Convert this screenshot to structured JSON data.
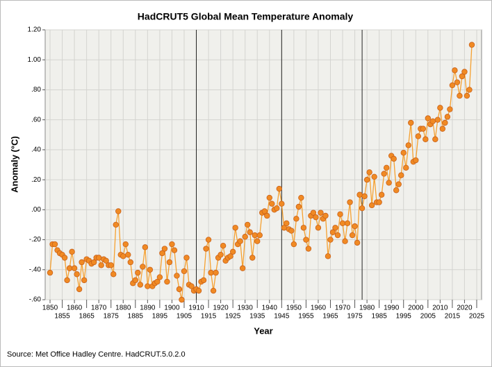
{
  "chart_data": {
    "type": "line",
    "title": "HadCRUT5 Global Mean Temperature Anomaly",
    "x_label": "Year",
    "y_label": "Anomaly (°C)",
    "source": "Source: Met Office Hadley Centre. HadCRUT.5.0.2.0",
    "xlim": [
      1848,
      2027
    ],
    "ylim": [
      -0.6,
      1.2
    ],
    "xticks": [
      1850,
      1855,
      1860,
      1865,
      1870,
      1875,
      1880,
      1885,
      1890,
      1895,
      1900,
      1905,
      1910,
      1915,
      1920,
      1925,
      1930,
      1935,
      1940,
      1945,
      1950,
      1955,
      1960,
      1965,
      1970,
      1975,
      1980,
      1985,
      1990,
      1995,
      2000,
      2005,
      2010,
      2015,
      2020,
      2025
    ],
    "yticks": [
      {
        "value": -0.6,
        "label": "-.60"
      },
      {
        "value": -0.4,
        "label": "-.40"
      },
      {
        "value": -0.2,
        "label": "-.20"
      },
      {
        "value": 0,
        "label": ".00"
      },
      {
        "value": 0.2,
        "label": ".20"
      },
      {
        "value": 0.4,
        "label": ".40"
      },
      {
        "value": 0.6,
        "label": ".60"
      },
      {
        "value": 0.8,
        "label": ".80"
      },
      {
        "value": 1.0,
        "label": "1.00"
      },
      {
        "value": 1.2,
        "label": "1.20"
      }
    ],
    "grid": true,
    "vlines": [
      1910,
      1945,
      1978
    ],
    "series": [
      {
        "name": "HadCRUT5",
        "color": "#f5a030",
        "marker_color": "#f08a24",
        "x": [
          1850,
          1851,
          1852,
          1853,
          1854,
          1855,
          1856,
          1857,
          1858,
          1859,
          1860,
          1861,
          1862,
          1863,
          1864,
          1865,
          1866,
          1867,
          1868,
          1869,
          1870,
          1871,
          1872,
          1873,
          1874,
          1875,
          1876,
          1877,
          1878,
          1879,
          1880,
          1881,
          1882,
          1883,
          1884,
          1885,
          1886,
          1887,
          1888,
          1889,
          1890,
          1891,
          1892,
          1893,
          1894,
          1895,
          1896,
          1897,
          1898,
          1899,
          1900,
          1901,
          1902,
          1903,
          1904,
          1905,
          1906,
          1907,
          1908,
          1909,
          1910,
          1911,
          1912,
          1913,
          1914,
          1915,
          1916,
          1917,
          1918,
          1919,
          1920,
          1921,
          1922,
          1923,
          1924,
          1925,
          1926,
          1927,
          1928,
          1929,
          1930,
          1931,
          1932,
          1933,
          1934,
          1935,
          1936,
          1937,
          1938,
          1939,
          1940,
          1941,
          1942,
          1943,
          1944,
          1945,
          1946,
          1947,
          1948,
          1949,
          1950,
          1951,
          1952,
          1953,
          1954,
          1955,
          1956,
          1957,
          1958,
          1959,
          1960,
          1961,
          1962,
          1963,
          1964,
          1965,
          1966,
          1967,
          1968,
          1969,
          1970,
          1971,
          1972,
          1973,
          1974,
          1975,
          1976,
          1977,
          1978,
          1979,
          1980,
          1981,
          1982,
          1983,
          1984,
          1985,
          1986,
          1987,
          1988,
          1989,
          1990,
          1991,
          1992,
          1993,
          1994,
          1995,
          1996,
          1997,
          1998,
          1999,
          2000,
          2001,
          2002,
          2003,
          2004,
          2005,
          2006,
          2007,
          2008,
          2009,
          2010,
          2011,
          2012,
          2013,
          2014,
          2015,
          2016,
          2017,
          2018,
          2019,
          2020,
          2021,
          2022,
          2023
        ],
        "values": [
          -0.42,
          -0.23,
          -0.23,
          -0.27,
          -0.29,
          -0.3,
          -0.32,
          -0.47,
          -0.39,
          -0.28,
          -0.39,
          -0.43,
          -0.53,
          -0.35,
          -0.47,
          -0.33,
          -0.34,
          -0.36,
          -0.35,
          -0.32,
          -0.32,
          -0.37,
          -0.33,
          -0.34,
          -0.37,
          -0.37,
          -0.43,
          -0.1,
          -0.01,
          -0.3,
          -0.31,
          -0.23,
          -0.3,
          -0.35,
          -0.49,
          -0.47,
          -0.42,
          -0.5,
          -0.38,
          -0.25,
          -0.51,
          -0.4,
          -0.51,
          -0.49,
          -0.48,
          -0.45,
          -0.29,
          -0.26,
          -0.48,
          -0.35,
          -0.23,
          -0.27,
          -0.44,
          -0.53,
          -0.6,
          -0.41,
          -0.32,
          -0.5,
          -0.51,
          -0.54,
          -0.53,
          -0.54,
          -0.48,
          -0.47,
          -0.26,
          -0.2,
          -0.42,
          -0.54,
          -0.42,
          -0.32,
          -0.3,
          -0.24,
          -0.34,
          -0.32,
          -0.31,
          -0.28,
          -0.12,
          -0.23,
          -0.21,
          -0.39,
          -0.18,
          -0.1,
          -0.15,
          -0.32,
          -0.17,
          -0.21,
          -0.17,
          -0.02,
          -0.01,
          -0.04,
          0.08,
          0.04,
          0.0,
          0.01,
          0.14,
          0.04,
          -0.12,
          -0.09,
          -0.13,
          -0.14,
          -0.23,
          -0.06,
          0.02,
          0.08,
          -0.12,
          -0.2,
          -0.26,
          -0.04,
          -0.02,
          -0.05,
          -0.12,
          -0.02,
          -0.06,
          -0.04,
          -0.31,
          -0.2,
          -0.15,
          -0.12,
          -0.17,
          -0.03,
          -0.09,
          -0.21,
          -0.09,
          0.05,
          -0.17,
          -0.11,
          -0.22,
          0.1,
          0.01,
          0.09,
          0.2,
          0.25,
          0.03,
          0.22,
          0.05,
          0.05,
          0.1,
          0.24,
          0.28,
          0.18,
          0.36,
          0.34,
          0.13,
          0.17,
          0.23,
          0.38,
          0.28,
          0.43,
          0.58,
          0.32,
          0.33,
          0.49,
          0.54,
          0.54,
          0.47,
          0.61,
          0.57,
          0.59,
          0.47,
          0.6,
          0.68,
          0.54,
          0.58,
          0.62,
          0.67,
          0.83,
          0.93,
          0.85,
          0.76,
          0.89,
          0.92,
          0.76,
          0.8,
          1.1
        ]
      }
    ]
  }
}
